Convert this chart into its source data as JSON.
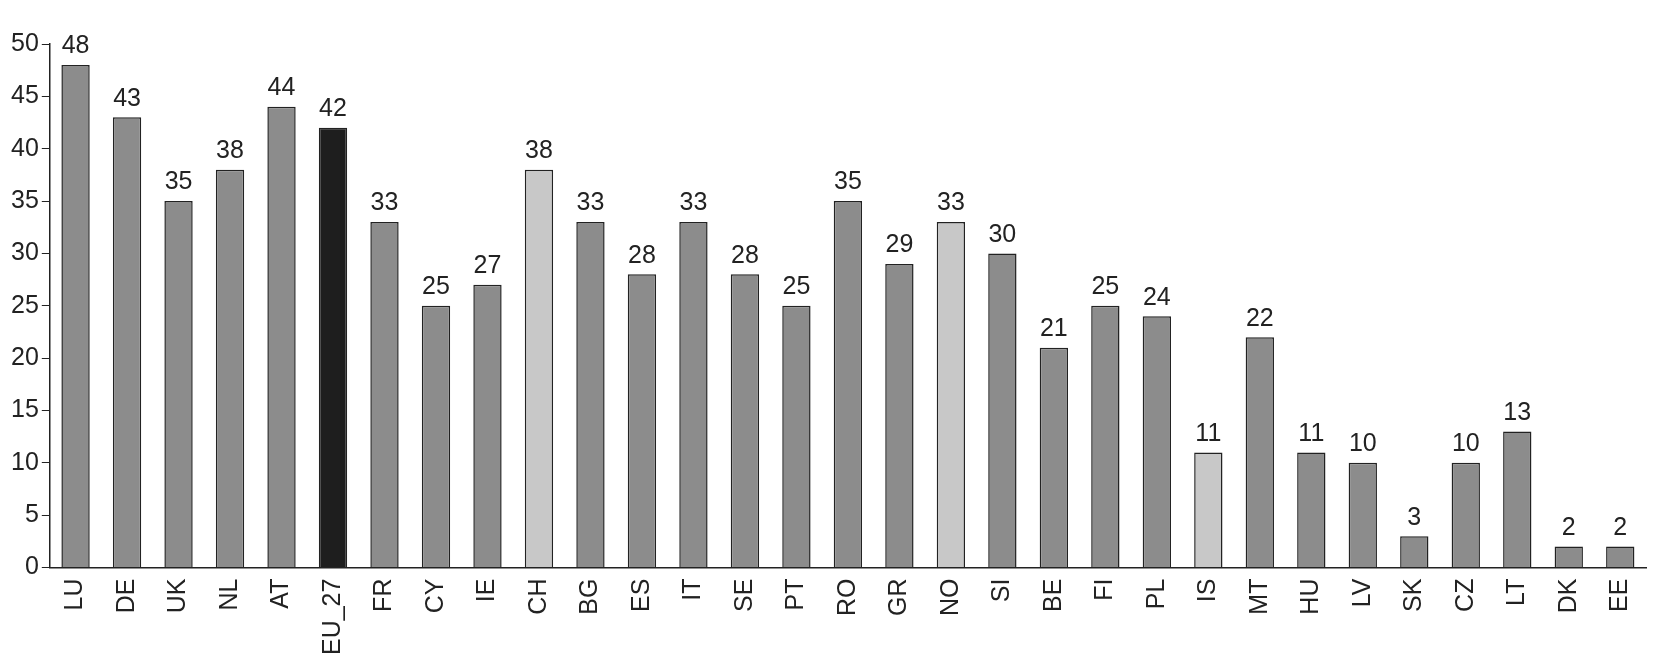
{
  "chart_data": {
    "type": "bar",
    "categories": [
      "LU",
      "DE",
      "UK",
      "NL",
      "AT",
      "EU_27",
      "FR",
      "CY",
      "IE",
      "CH",
      "BG",
      "ES",
      "IT",
      "SE",
      "PT",
      "RO",
      "GR",
      "NO",
      "SI",
      "BE",
      "FI",
      "PL",
      "IS",
      "MT",
      "HU",
      "LV",
      "SK",
      "CZ",
      "LT",
      "DK",
      "EE"
    ],
    "values": [
      48,
      43,
      35,
      38,
      44,
      42,
      33,
      25,
      27,
      38,
      33,
      28,
      33,
      28,
      25,
      35,
      29,
      33,
      30,
      21,
      25,
      24,
      11,
      22,
      11,
      10,
      3,
      10,
      13,
      2,
      2
    ],
    "colors": [
      "#8c8c8c",
      "#8c8c8c",
      "#8c8c8c",
      "#8c8c8c",
      "#8c8c8c",
      "#1e1e1e",
      "#8c8c8c",
      "#8c8c8c",
      "#8c8c8c",
      "#c8c8c8",
      "#8c8c8c",
      "#8c8c8c",
      "#8c8c8c",
      "#8c8c8c",
      "#8c8c8c",
      "#8c8c8c",
      "#8c8c8c",
      "#c8c8c8",
      "#8c8c8c",
      "#8c8c8c",
      "#8c8c8c",
      "#8c8c8c",
      "#c8c8c8",
      "#8c8c8c",
      "#8c8c8c",
      "#8c8c8c",
      "#8c8c8c",
      "#8c8c8c",
      "#8c8c8c",
      "#8c8c8c",
      "#8c8c8c"
    ],
    "ylim": [
      0,
      50
    ],
    "yticks": [
      0,
      5,
      10,
      15,
      20,
      25,
      30,
      35,
      40,
      45,
      50
    ],
    "data_labels": true,
    "grid": false,
    "legend": false
  }
}
